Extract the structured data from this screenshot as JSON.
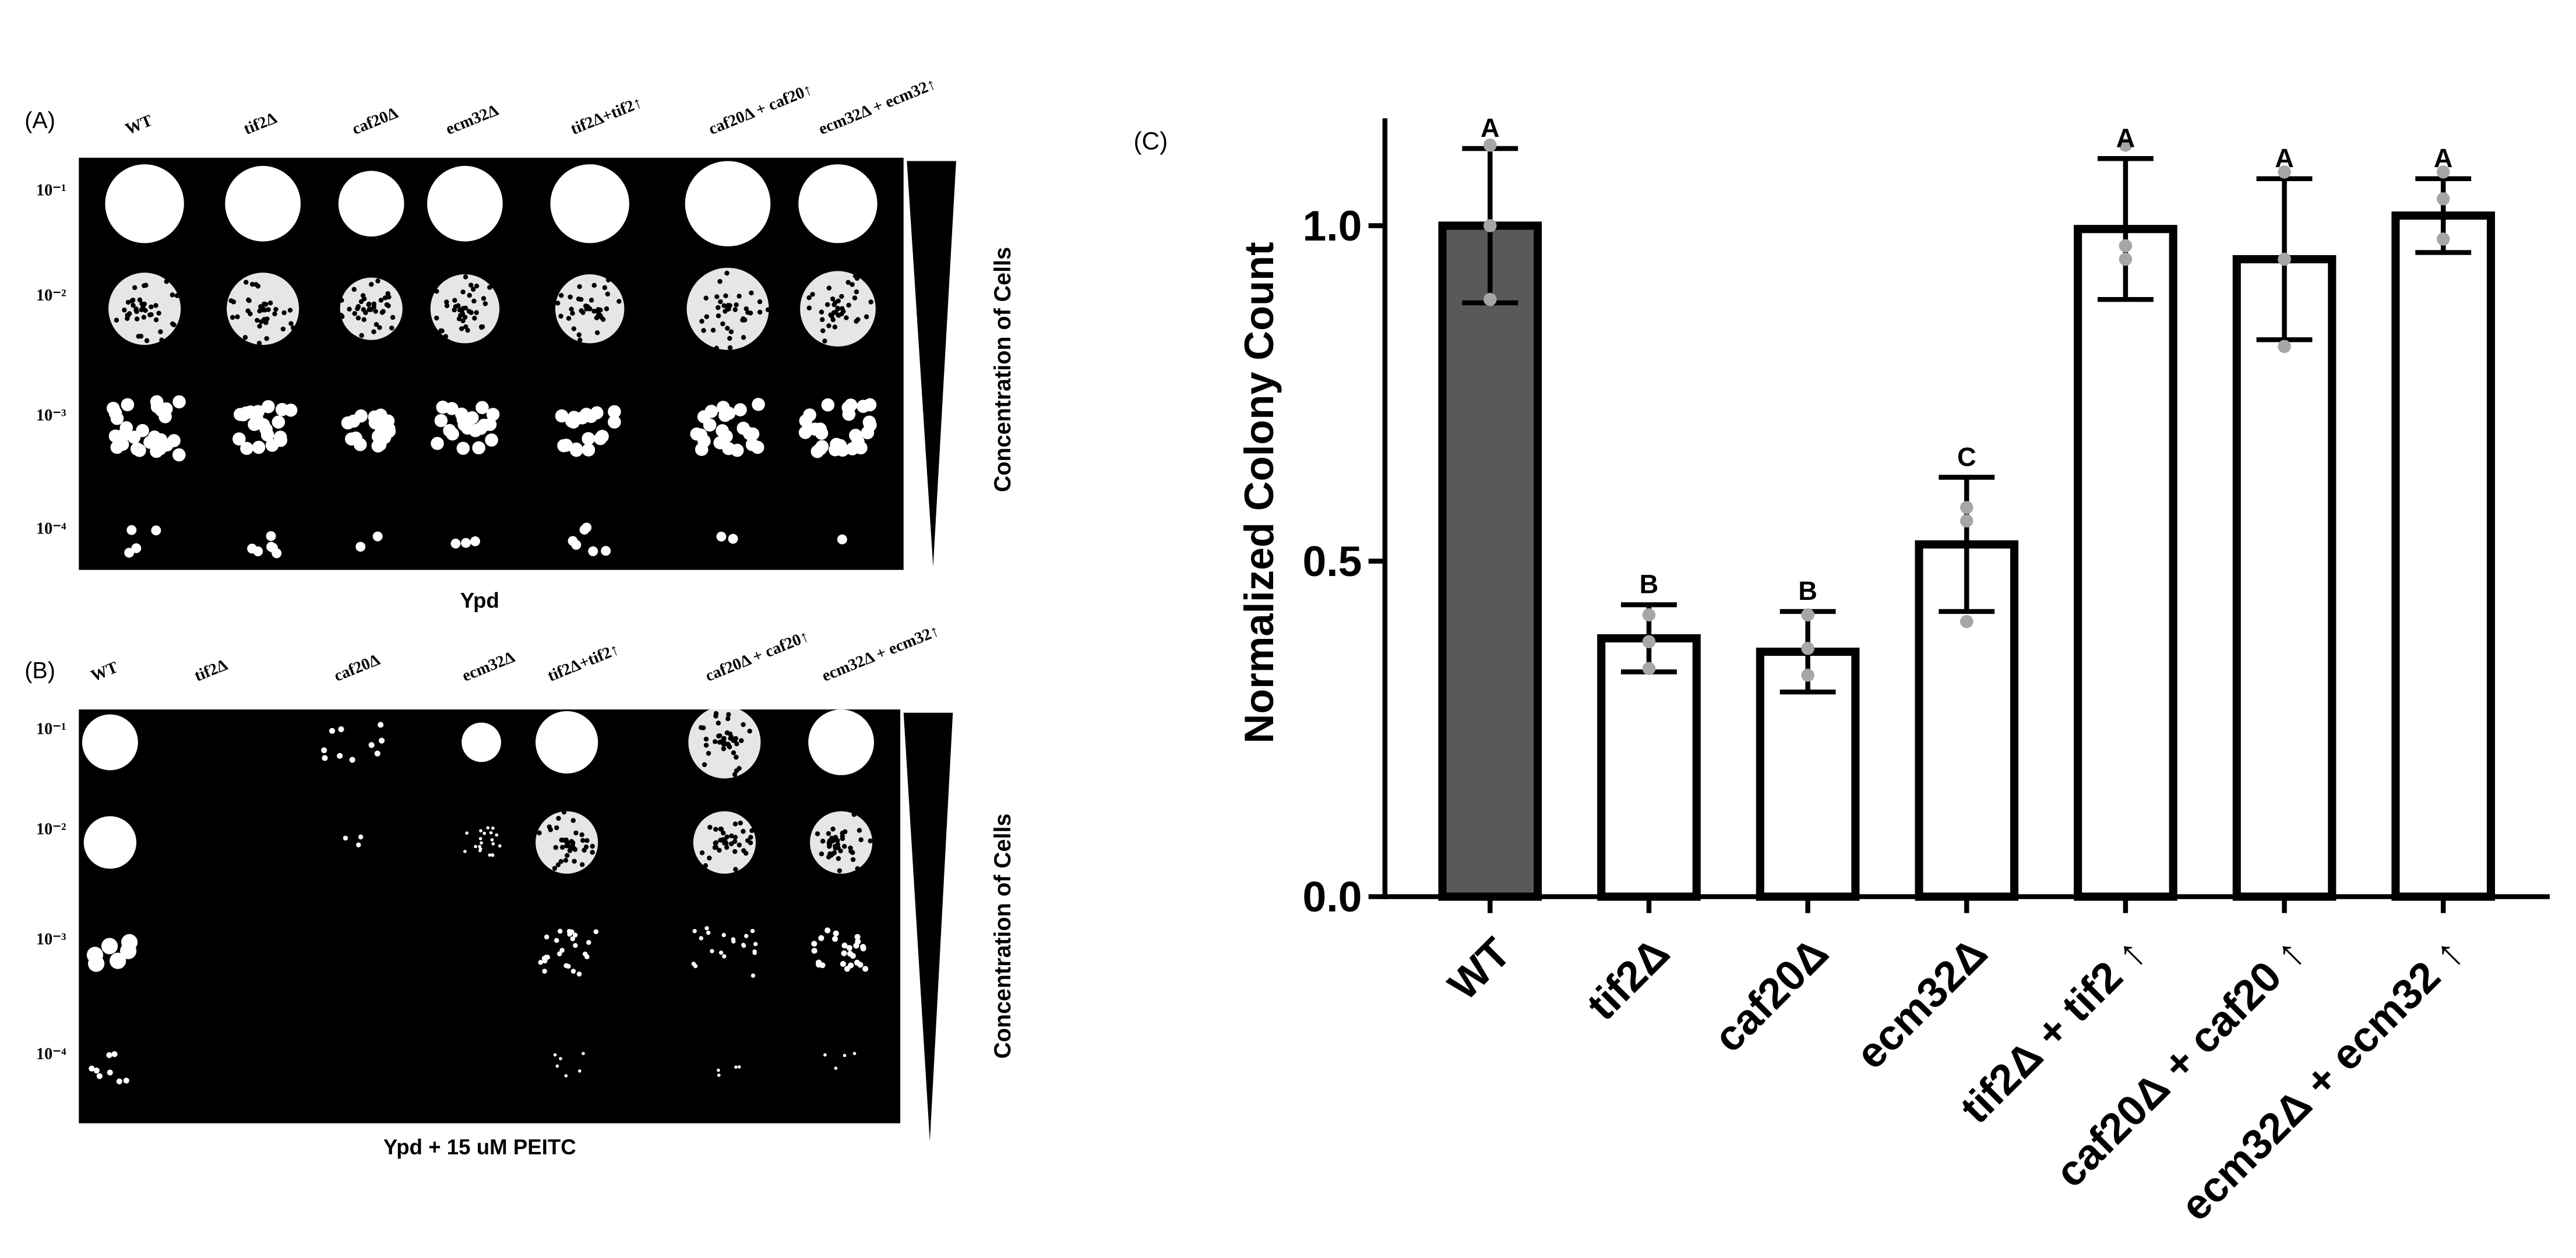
{
  "panels": [
    {
      "label": "(A)",
      "strains": [
        "WT",
        "tif2Δ",
        "caf20Δ",
        "ecm32Δ",
        "tif2Δ+tif2↑",
        "caf20Δ + caf20↑",
        "ecm32Δ + ecm32↑"
      ],
      "dilutions": [
        "10⁻¹",
        "10⁻²",
        "10⁻³",
        "10⁻⁴"
      ],
      "medium": "Ypd",
      "gradient_label": "Concentration of Cells"
    },
    {
      "label": "(B)",
      "strains": [
        "WT",
        "tif2Δ",
        "caf20Δ",
        "ecm32Δ",
        "tif2Δ+tif2↑",
        "caf20Δ + caf20↑",
        "ecm32Δ + ecm32↑"
      ],
      "dilutions": [
        "10⁻¹",
        "10⁻²",
        "10⁻³",
        "10⁻⁴"
      ],
      "medium": "Ypd + 15 uM PEITC",
      "gradient_label": "Concentration of Cells"
    }
  ],
  "chart_data": {
    "type": "bar",
    "panel_label": "(C)",
    "ylabel": "Normalized Colony Count",
    "categories": [
      "WT",
      "tif2Δ",
      "caf20Δ",
      "ecm32Δ",
      "tif2Δ + tif2 ↑",
      "caf20Δ + caf20 ↑",
      "ecm32Δ + ecm32 ↑"
    ],
    "values": [
      1.0,
      0.385,
      0.365,
      0.525,
      0.995,
      0.95,
      1.015
    ],
    "errors": [
      0.115,
      0.05,
      0.06,
      0.1,
      0.105,
      0.12,
      0.055
    ],
    "points": [
      [
        1.12,
        1.0,
        0.89
      ],
      [
        0.42,
        0.38,
        0.34
      ],
      [
        0.42,
        0.37,
        0.33
      ],
      [
        0.58,
        0.56,
        0.41
      ],
      [
        1.12,
        0.95,
        0.97
      ],
      [
        1.08,
        0.95,
        0.82
      ],
      [
        1.08,
        1.04,
        0.98
      ]
    ],
    "letters": [
      "A",
      "B",
      "B",
      "C",
      "A",
      "A",
      "A"
    ],
    "colors": [
      "#595959",
      "#ffffff",
      "#ffffff",
      "#ffffff",
      "#ffffff",
      "#ffffff",
      "#ffffff"
    ],
    "point_color": "#a6a6a6",
    "ylim": [
      0,
      1.16
    ],
    "yticks": [
      {
        "value": 0,
        "label": "0.0"
      },
      0.5,
      {
        "value": 1,
        "label": "1.0"
      }
    ]
  }
}
